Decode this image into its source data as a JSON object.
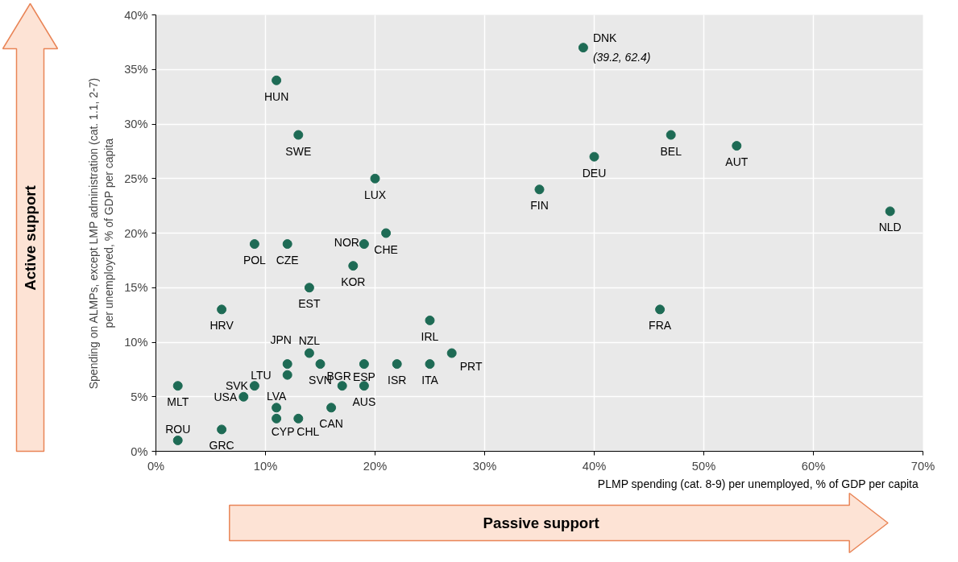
{
  "chart_data": {
    "type": "scatter",
    "xlabel": "PLMP spending (cat. 8-9) per unemployed, % of GDP per capita",
    "ylabel": "Spending on ALMPs, except LMP administration (cat. 1.1, 2-7)\nper unemployed, % of GDP per capita",
    "x": [
      39,
      11,
      13,
      20,
      21,
      19,
      18,
      9,
      12,
      14,
      6,
      35,
      40,
      47,
      53,
      67,
      46,
      25,
      27,
      25,
      22,
      19,
      19,
      17,
      16,
      15,
      14,
      12,
      12,
      11,
      11,
      13,
      9,
      8,
      2,
      2,
      6
    ],
    "series": [
      {
        "color": "#1e6b55",
        "values": [
          37,
          34,
          29,
          25,
          20,
          19,
          17,
          19,
          19,
          15,
          13,
          24,
          27,
          29,
          28,
          22,
          13,
          12,
          9,
          8,
          8,
          8,
          6,
          6,
          4,
          8,
          9,
          8,
          7,
          4,
          3,
          3,
          6,
          5,
          6,
          1,
          2
        ]
      }
    ],
    "marker": "circle",
    "xlim": [
      0,
      70
    ],
    "xticks": [
      {
        "value": 0,
        "label": "0%"
      },
      {
        "value": 10,
        "label": "10%"
      },
      {
        "value": 20,
        "label": "20%"
      },
      {
        "value": 30,
        "label": "30%"
      },
      {
        "value": 40,
        "label": "40%"
      },
      {
        "value": 50,
        "label": "50%"
      },
      {
        "value": 60,
        "label": "60%"
      },
      {
        "value": 70,
        "label": "70%"
      }
    ],
    "ylim": [
      0,
      40
    ],
    "yticks": [
      {
        "value": 0,
        "label": "0%"
      },
      {
        "value": 5,
        "label": "5%"
      },
      {
        "value": 10,
        "label": "10%"
      },
      {
        "value": 15,
        "label": "15%"
      },
      {
        "value": 20,
        "label": "20%"
      },
      {
        "value": 25,
        "label": "25%"
      },
      {
        "value": 30,
        "label": "30%"
      },
      {
        "value": 35,
        "label": "35%"
      },
      {
        "value": 40,
        "label": "40%"
      }
    ],
    "grid": true,
    "annotations": [
      {
        "text": "DNK",
        "x": 39,
        "y": 37
      },
      {
        "text": "HUN",
        "x": 11,
        "y": 34
      },
      {
        "text": "SWE",
        "x": 13,
        "y": 29
      },
      {
        "text": "LUX",
        "x": 20,
        "y": 25
      },
      {
        "text": "CHE",
        "x": 21,
        "y": 20
      },
      {
        "text": "NOR",
        "x": 19,
        "y": 19
      },
      {
        "text": "KOR",
        "x": 18,
        "y": 17
      },
      {
        "text": "POL",
        "x": 9,
        "y": 19
      },
      {
        "text": "CZE",
        "x": 12,
        "y": 19
      },
      {
        "text": "EST",
        "x": 14,
        "y": 15
      },
      {
        "text": "HRV",
        "x": 6,
        "y": 13
      },
      {
        "text": "FIN",
        "x": 35,
        "y": 24
      },
      {
        "text": "DEU",
        "x": 40,
        "y": 27
      },
      {
        "text": "BEL",
        "x": 47,
        "y": 29
      },
      {
        "text": "AUT",
        "x": 53,
        "y": 28
      },
      {
        "text": "NLD",
        "x": 67,
        "y": 22
      },
      {
        "text": "FRA",
        "x": 46,
        "y": 13
      },
      {
        "text": "IRL",
        "x": 25,
        "y": 12
      },
      {
        "text": "PRT",
        "x": 27,
        "y": 9
      },
      {
        "text": "ITA",
        "x": 25,
        "y": 8
      },
      {
        "text": "ISR",
        "x": 22,
        "y": 8
      },
      {
        "text": "ESP",
        "x": 19,
        "y": 8
      },
      {
        "text": "AUS",
        "x": 19,
        "y": 6
      },
      {
        "text": "BGR",
        "x": 17,
        "y": 6
      },
      {
        "text": "CAN",
        "x": 16,
        "y": 4
      },
      {
        "text": "SVN",
        "x": 15,
        "y": 8
      },
      {
        "text": "NZL",
        "x": 14,
        "y": 9
      },
      {
        "text": "JPN",
        "x": 12,
        "y": 8
      },
      {
        "text": "LTU",
        "x": 12,
        "y": 7
      },
      {
        "text": "LVA",
        "x": 11,
        "y": 4
      },
      {
        "text": "CYP",
        "x": 11,
        "y": 3
      },
      {
        "text": "CHL",
        "x": 13,
        "y": 3
      },
      {
        "text": "SVK",
        "x": 9,
        "y": 6
      },
      {
        "text": "USA",
        "x": 8,
        "y": 5
      },
      {
        "text": "MLT",
        "x": 2,
        "y": 6
      },
      {
        "text": "ROU",
        "x": 2,
        "y": 1
      },
      {
        "text": "GRC",
        "x": 6,
        "y": 2
      },
      {
        "text": "(39.2, 62.4)",
        "x": 39,
        "y": 37
      },
      "Active support",
      "Passive support"
    ]
  }
}
